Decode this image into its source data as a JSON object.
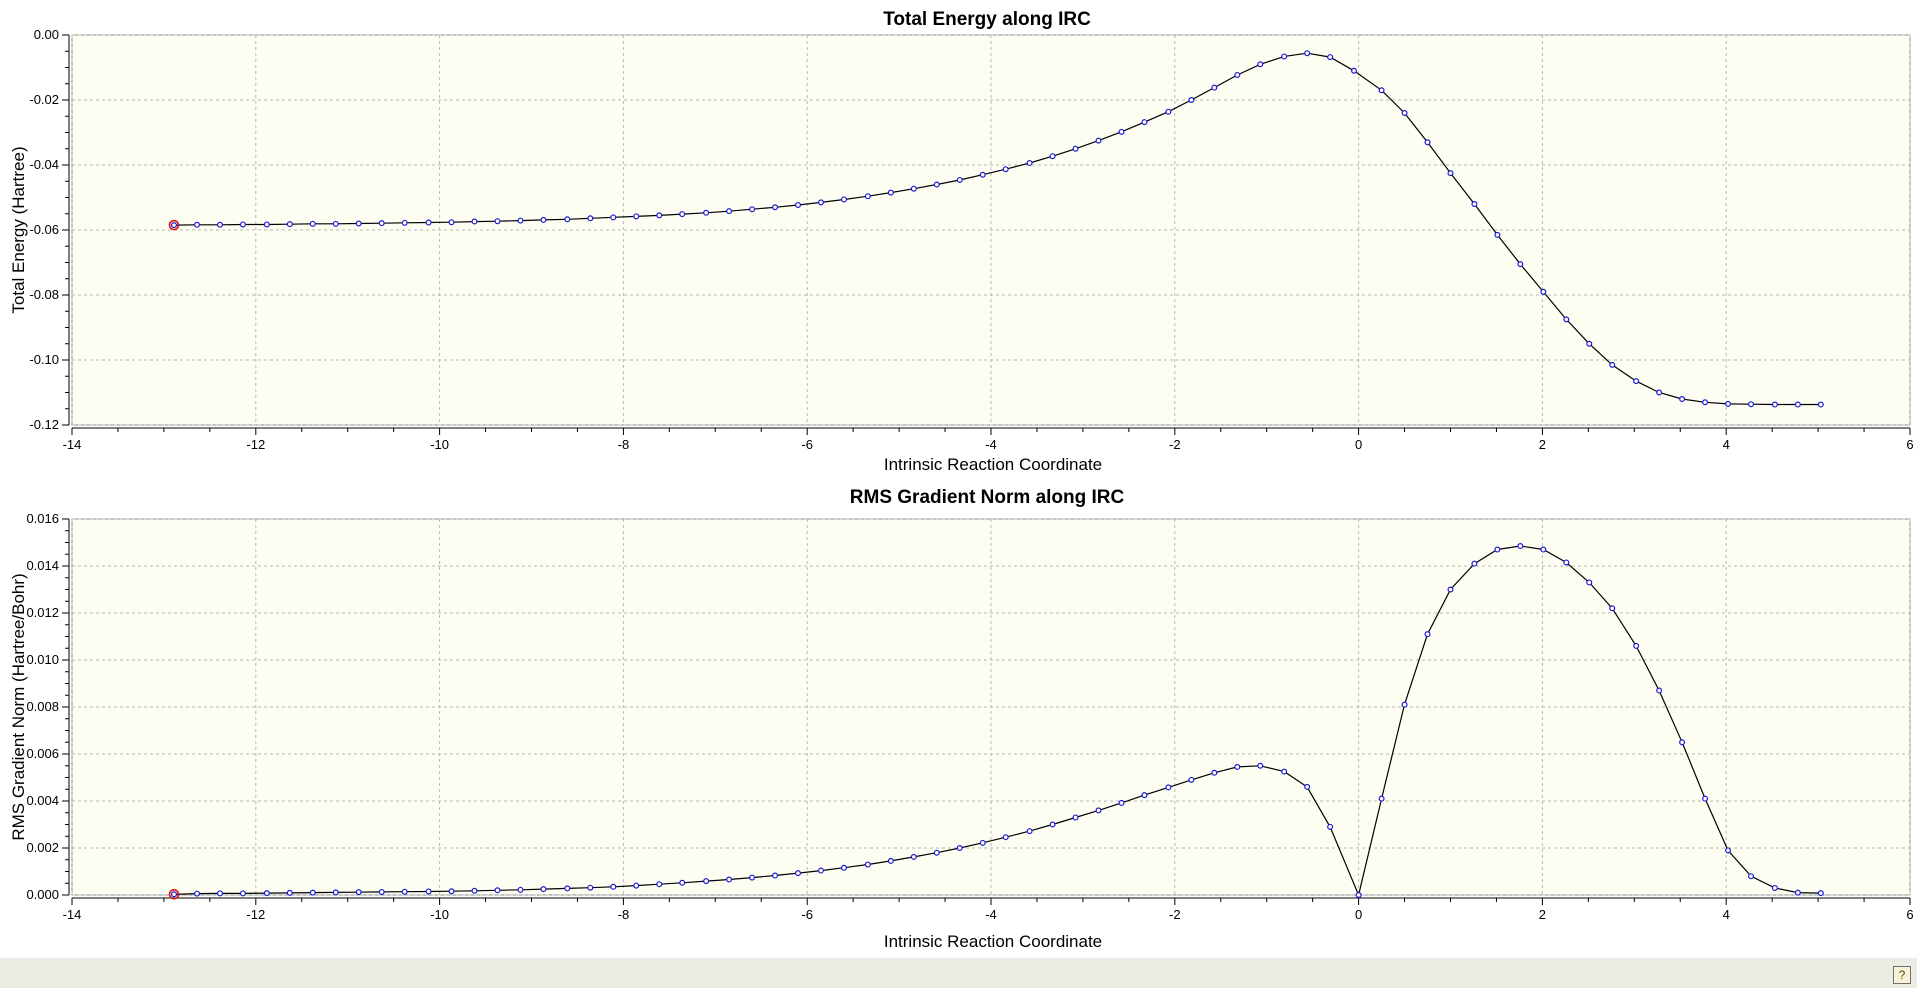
{
  "chart_data": [
    {
      "type": "line",
      "title": "Total Energy along IRC",
      "xlabel": "Intrinsic Reaction Coordinate",
      "ylabel": "Total Energy (Hartree)",
      "xlim": [
        -14,
        6
      ],
      "ylim": [
        -0.12,
        0.0
      ],
      "xticks": [
        -14,
        -12,
        -10,
        -8,
        -6,
        -4,
        -2,
        0,
        2,
        4,
        6
      ],
      "yticks": [
        0.0,
        -0.02,
        -0.04,
        -0.06,
        -0.08,
        -0.1,
        -0.12
      ],
      "ytick_labels": [
        "0.00",
        "-0.02",
        "-0.04",
        "-0.06",
        "-0.08",
        "-0.10",
        "-0.12"
      ],
      "grid": true,
      "legend": "none",
      "highlighted_point_index": 0,
      "colors": {
        "line": "#000000",
        "marker": "#1a1ad6",
        "highlight": "#e01010",
        "plot_bg": "#fdfdf2",
        "grid": "#b8b8b8"
      },
      "series": [
        {
          "x": [
            -12.89,
            -12.64,
            -12.39,
            -12.14,
            -11.88,
            -11.63,
            -11.38,
            -11.13,
            -10.88,
            -10.63,
            -10.38,
            -10.12,
            -9.87,
            -9.62,
            -9.37,
            -9.12,
            -8.87,
            -8.61,
            -8.36,
            -8.11,
            -7.86,
            -7.61,
            -7.36,
            -7.1,
            -6.85,
            -6.6,
            -6.35,
            -6.1,
            -5.85,
            -5.6,
            -5.34,
            -5.09,
            -4.84,
            -4.59,
            -4.34,
            -4.09,
            -3.84,
            -3.58,
            -3.33,
            -3.08,
            -2.83,
            -2.58,
            -2.33,
            -2.07,
            -1.82,
            -1.57,
            -1.32,
            -1.07,
            -0.81,
            -0.56,
            -0.31,
            -0.05,
            0.25,
            0.5,
            0.75,
            1.0,
            1.26,
            1.51,
            1.76,
            2.01,
            2.26,
            2.51,
            2.76,
            3.02,
            3.27,
            3.52,
            3.77,
            4.02,
            4.27,
            4.53,
            4.78,
            5.03
          ],
          "y": [
            -0.0585,
            -0.0584,
            -0.0584,
            -0.0583,
            -0.0583,
            -0.0582,
            -0.0581,
            -0.0581,
            -0.058,
            -0.0579,
            -0.0578,
            -0.0577,
            -0.0576,
            -0.0574,
            -0.0573,
            -0.0571,
            -0.0569,
            -0.0567,
            -0.0564,
            -0.0561,
            -0.0558,
            -0.0555,
            -0.0551,
            -0.0547,
            -0.0542,
            -0.0536,
            -0.053,
            -0.0523,
            -0.0515,
            -0.0506,
            -0.0496,
            -0.0485,
            -0.0473,
            -0.046,
            -0.0446,
            -0.043,
            -0.0413,
            -0.0394,
            -0.0373,
            -0.035,
            -0.0325,
            -0.0298,
            -0.0268,
            -0.0236,
            -0.02,
            -0.0162,
            -0.0123,
            -0.009,
            -0.0066,
            -0.0056,
            -0.0068,
            -0.011,
            -0.017,
            -0.024,
            -0.033,
            -0.0425,
            -0.052,
            -0.0615,
            -0.0705,
            -0.079,
            -0.0875,
            -0.095,
            -0.1015,
            -0.1065,
            -0.11,
            -0.112,
            -0.113,
            -0.1135,
            -0.1136,
            -0.1137,
            -0.1137,
            -0.1137
          ]
        }
      ]
    },
    {
      "type": "line",
      "title": "RMS Gradient Norm along IRC",
      "xlabel": "Intrinsic Reaction Coordinate",
      "ylabel": "RMS Gradient Norm (Hartree/Bohr)",
      "xlim": [
        -14,
        6
      ],
      "ylim": [
        0.0,
        0.016
      ],
      "xticks": [
        -14,
        -12,
        -10,
        -8,
        -6,
        -4,
        -2,
        0,
        2,
        4,
        6
      ],
      "yticks": [
        0.0,
        0.002,
        0.004,
        0.006,
        0.008,
        0.01,
        0.012,
        0.014,
        0.016
      ],
      "ytick_labels": [
        "0.000",
        "0.002",
        "0.004",
        "0.006",
        "0.008",
        "0.010",
        "0.012",
        "0.014",
        "0.016"
      ],
      "grid": true,
      "legend": "none",
      "highlighted_point_index": 0,
      "colors": {
        "line": "#000000",
        "marker": "#1a1ad6",
        "highlight": "#e01010",
        "plot_bg": "#fdfdf2",
        "grid": "#b8b8b8"
      },
      "series": [
        {
          "x": [
            -12.89,
            -12.64,
            -12.39,
            -12.14,
            -11.88,
            -11.63,
            -11.38,
            -11.13,
            -10.88,
            -10.63,
            -10.38,
            -10.12,
            -9.87,
            -9.62,
            -9.37,
            -9.12,
            -8.87,
            -8.61,
            -8.36,
            -8.11,
            -7.86,
            -7.61,
            -7.36,
            -7.1,
            -6.85,
            -6.6,
            -6.35,
            -6.1,
            -5.85,
            -5.6,
            -5.34,
            -5.09,
            -4.84,
            -4.59,
            -4.34,
            -4.09,
            -3.84,
            -3.58,
            -3.33,
            -3.08,
            -2.83,
            -2.58,
            -2.33,
            -2.07,
            -1.82,
            -1.57,
            -1.32,
            -1.07,
            -0.81,
            -0.56,
            -0.31,
            0.0,
            0.25,
            0.5,
            0.75,
            1.0,
            1.26,
            1.51,
            1.76,
            2.01,
            2.26,
            2.51,
            2.76,
            3.02,
            3.27,
            3.52,
            3.77,
            4.02,
            4.27,
            4.53,
            4.78,
            5.03
          ],
          "y": [
            3e-05,
            6e-05,
            7e-05,
            7e-05,
            8e-05,
            9e-05,
            0.0001,
            0.00011,
            0.00012,
            0.00013,
            0.00014,
            0.00015,
            0.00016,
            0.00018,
            0.0002,
            0.00022,
            0.00025,
            0.00028,
            0.00031,
            0.00035,
            0.0004,
            0.00046,
            0.00052,
            0.00059,
            0.00066,
            0.00074,
            0.00083,
            0.00093,
            0.00104,
            0.00116,
            0.0013,
            0.00145,
            0.00162,
            0.0018,
            0.002,
            0.00222,
            0.00246,
            0.00272,
            0.003,
            0.0033,
            0.0036,
            0.00392,
            0.00425,
            0.00458,
            0.0049,
            0.0052,
            0.00545,
            0.0055,
            0.00525,
            0.0046,
            0.0029,
            0.0,
            0.0041,
            0.0081,
            0.0111,
            0.013,
            0.0141,
            0.0147,
            0.01485,
            0.0147,
            0.01415,
            0.0133,
            0.0122,
            0.0106,
            0.0087,
            0.0065,
            0.0041,
            0.0019,
            0.0008,
            0.0003,
            0.0001,
            8e-05
          ]
        }
      ]
    }
  ],
  "status_bar": {
    "help_icon": "help-book-icon",
    "help_glyph": "?"
  }
}
